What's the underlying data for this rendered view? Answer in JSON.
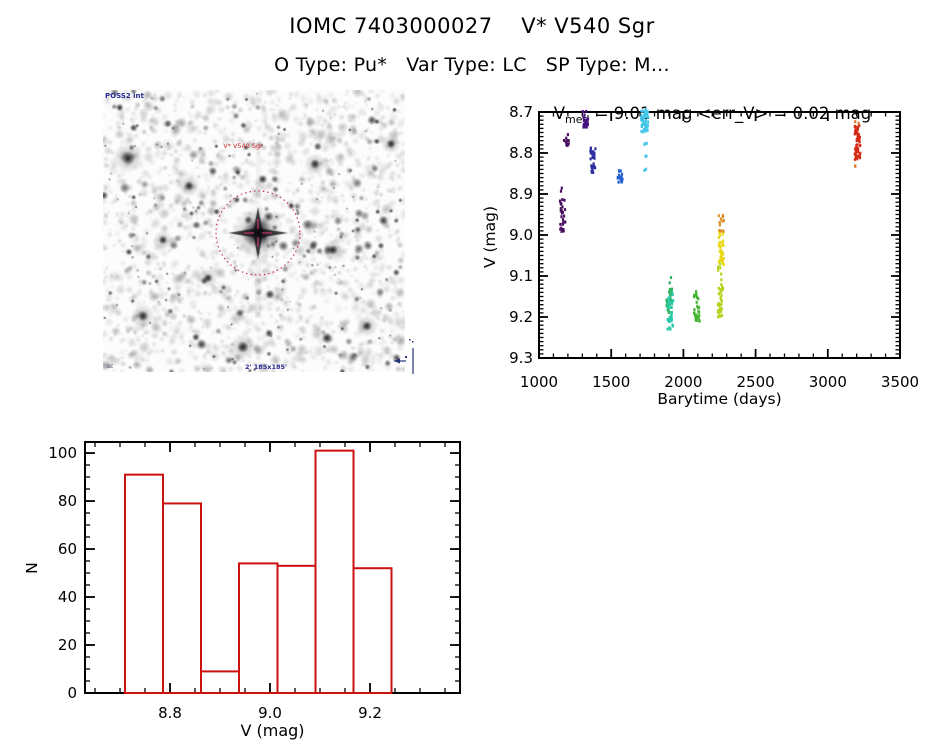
{
  "header": {
    "title": "IOMC 7403000027    V* V540 Sgr",
    "subtitle": "O Type: Pu*   Var Type: LC   SP Type: M..."
  },
  "finding_chart": {
    "survey_label": "POSS2 int",
    "target_label": "V* V540 Sgr",
    "footer_label": "2' 185x185'",
    "corner_label": ".sc",
    "marker_color": "#cc3350",
    "crosshair_color": "#b03366",
    "label_color": "#2a2a8f",
    "target_label_color": "#cc2222"
  },
  "chart_data": [
    {
      "type": "scatter",
      "title": "V_med = 9.01 mag <err_V> = 0.02 mag",
      "title_parts": {
        "prefix": "V",
        "sub": "med",
        "rest": " = 9.01 mag <err_V> = 0.02 mag"
      },
      "xlabel": "Barytime (days)",
      "ylabel": "V (mag)",
      "xlim": [
        1000,
        3500
      ],
      "ylim": [
        9.3,
        8.7
      ],
      "x_ticks": [
        1000,
        1500,
        2000,
        2500,
        3000,
        3500
      ],
      "y_ticks": [
        "8.7",
        "8.8",
        "8.9",
        "9.0",
        "9.1",
        "9.2",
        "9.3"
      ],
      "x_minor_step": 100,
      "y_minor_step": 0.01,
      "grid": false,
      "legend": "none",
      "clusters": [
        {
          "t": 1164,
          "color": "#4a1060",
          "segments": [
            [
              8.912,
              8.993,
              28
            ],
            [
              8.885,
              8.898,
              2
            ]
          ]
        },
        {
          "t": 1188,
          "color": "#4a1060",
          "segments": [
            [
              8.755,
              8.782,
              14
            ]
          ]
        },
        {
          "t": 1322,
          "color": "#471281",
          "segments": [
            [
              8.698,
              8.737,
              20
            ],
            [
              8.728,
              8.735,
              2
            ]
          ]
        },
        {
          "t": 1372,
          "color": "#2f2f9f",
          "segments": [
            [
              8.788,
              8.818,
              16
            ],
            [
              8.822,
              8.848,
              14
            ]
          ]
        },
        {
          "t": 1562,
          "color": "#2563d2",
          "segments": [
            [
              8.833,
              8.872,
              16
            ],
            [
              8.855,
              8.862,
              2
            ]
          ]
        },
        {
          "t": 1725,
          "color": "#3fc0e8",
          "segments": [
            [
              8.693,
              8.748,
              30
            ]
          ]
        },
        {
          "t": 1740,
          "color": "#45c8ea",
          "segments": [
            [
              8.698,
              8.752,
              22
            ],
            [
              8.772,
              8.786,
              3
            ],
            [
              8.798,
              8.812,
              2
            ],
            [
              8.835,
              8.845,
              2
            ]
          ]
        },
        {
          "t": 1902,
          "color": "#2eb360",
          "segments": [
            [
              9.128,
              9.192,
              24
            ],
            [
              9.098,
              9.106,
              1
            ],
            [
              9.112,
              9.118,
              1
            ]
          ]
        },
        {
          "t": 1910,
          "color": "#26c8a6",
          "segments": [
            [
              9.142,
              9.232,
              34
            ]
          ]
        },
        {
          "t": 2093,
          "color": "#43b531",
          "segments": [
            [
              9.138,
              9.158,
              8
            ],
            [
              9.162,
              9.212,
              22
            ]
          ]
        },
        {
          "t": 2256,
          "color": "#b2d41d",
          "segments": [
            [
              9.118,
              9.202,
              30
            ],
            [
              9.062,
              9.112,
              6
            ]
          ]
        },
        {
          "t": 2262,
          "color": "#ead713",
          "segments": [
            [
              8.985,
              9.072,
              34
            ]
          ]
        },
        {
          "t": 2262,
          "color": "#dd9129",
          "segments": [
            [
              8.952,
              8.992,
              12
            ]
          ]
        },
        {
          "t": 3206,
          "color": "#d52a15",
          "segments": [
            [
              8.732,
              8.818,
              60
            ]
          ]
        },
        {
          "t": 3203,
          "color": "#e07a2c",
          "segments": [
            [
              8.718,
              8.728,
              2
            ],
            [
              8.824,
              8.834,
              2
            ]
          ]
        }
      ]
    },
    {
      "type": "histogram",
      "xlabel": "V (mag)",
      "ylabel": "N",
      "bin_start": 8.71,
      "bin_width": 0.0762,
      "bin_edges": [
        8.71,
        8.786,
        8.862,
        8.938,
        9.015,
        9.091,
        9.167,
        9.243
      ],
      "counts": [
        91,
        79,
        9,
        54,
        53,
        101,
        52
      ],
      "x_ticks": [
        "8.8",
        "9.0",
        "9.2"
      ],
      "x_tick_values": [
        8.8,
        9.0,
        9.2
      ],
      "y_ticks": [
        0,
        20,
        40,
        60,
        80,
        100
      ],
      "x_minor_step": 0.05,
      "y_minor_step": 5,
      "xlim": [
        8.63,
        9.38
      ],
      "ylim": [
        0,
        104.6
      ],
      "bar_color": "#cc1111",
      "grid": false
    }
  ]
}
